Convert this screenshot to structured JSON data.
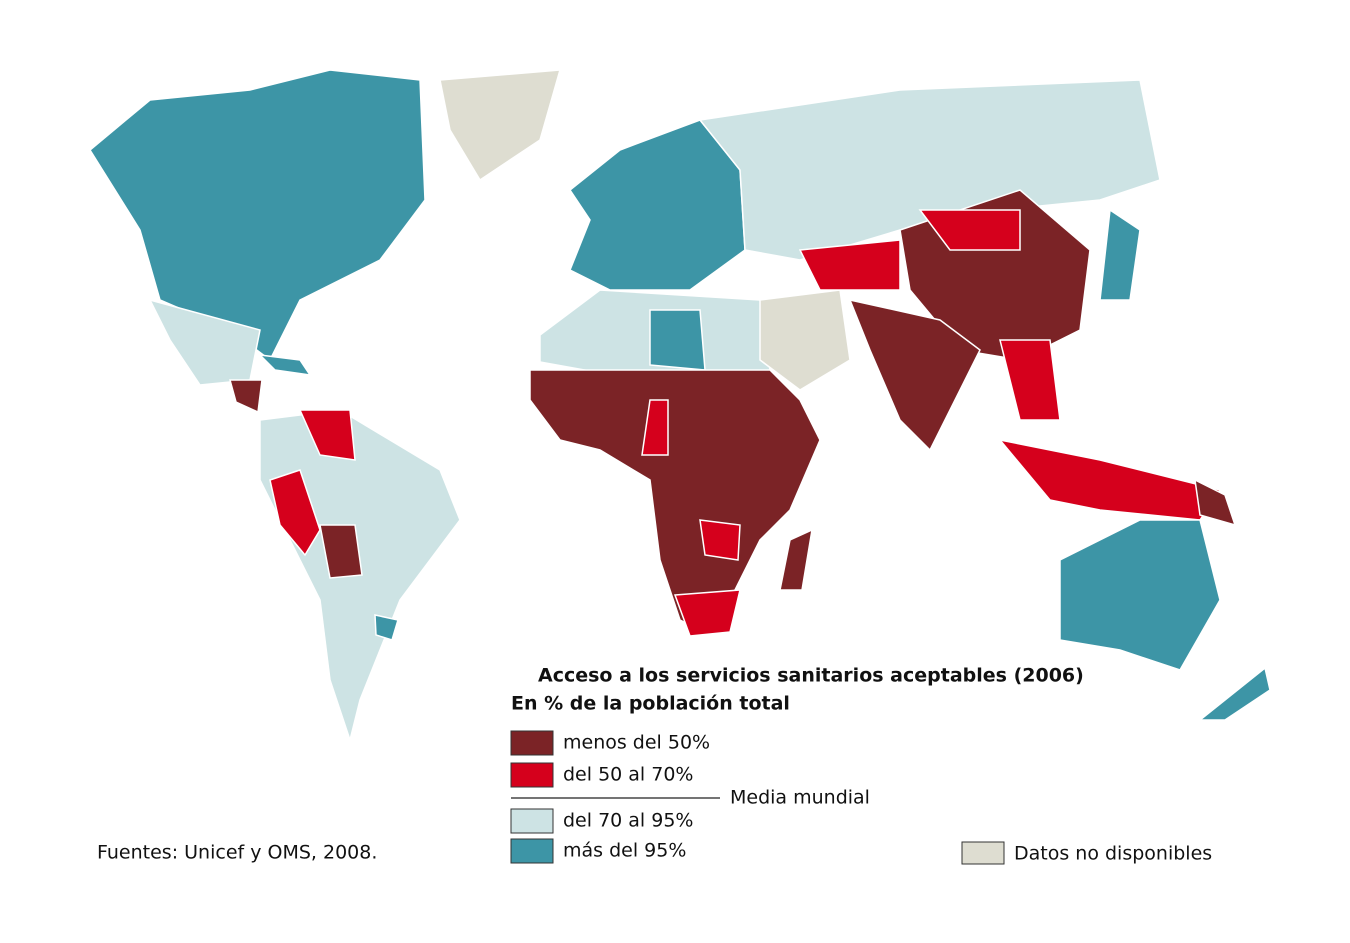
{
  "title": "Acceso a los servicios sanitarios aceptables (2006)",
  "subtitle": "En % de la población total",
  "legend": [
    {
      "label": "menos del 50%",
      "color": "#7b2326"
    },
    {
      "label": "del 50 al 70%",
      "color": "#d5001c"
    },
    {
      "label": "del 70 al 95%",
      "color": "#cde3e4"
    },
    {
      "label": "más del 95%",
      "color": "#3d95a6"
    }
  ],
  "divider_label": "Media mundial",
  "no_data": {
    "label": "Datos no disponibles",
    "color": "#deddd1"
  },
  "source": "Fuentes: Unicef y OMS, 2008."
}
